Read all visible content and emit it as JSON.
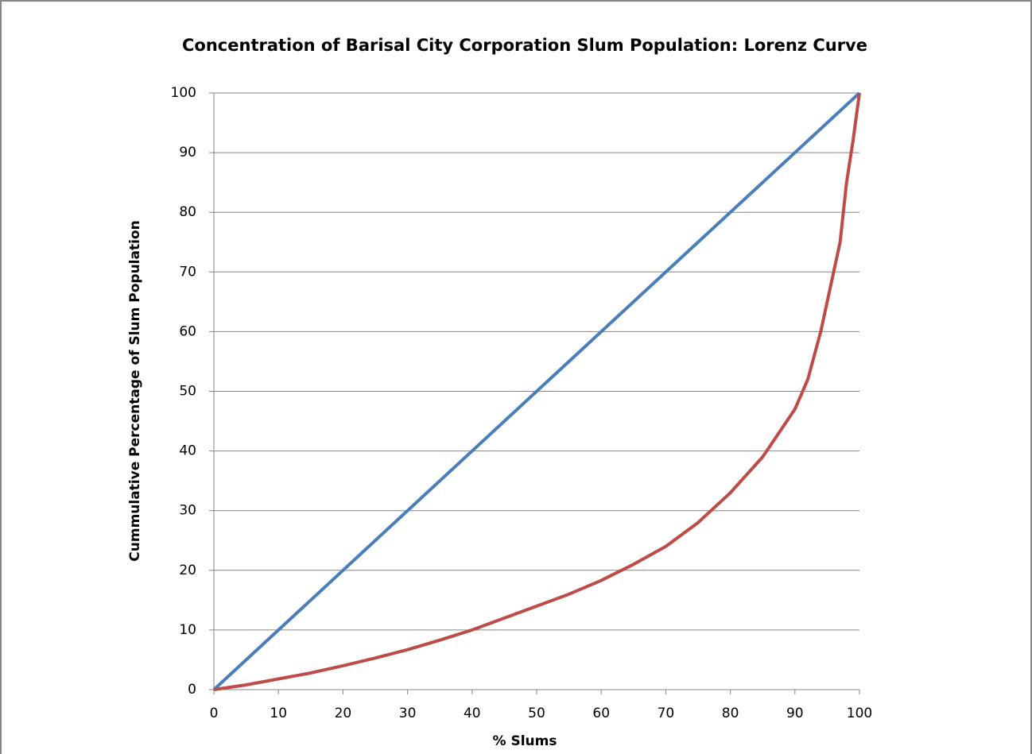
{
  "chart_data": {
    "type": "line",
    "title": "Concentration of Barisal City Corporation Slum Population: Lorenz Curve",
    "x_label": "% Slums",
    "y_label": "Cummulative Percentage of Slum Population",
    "xlim": [
      0,
      100
    ],
    "ylim": [
      0,
      100
    ],
    "xticks": [
      0,
      10,
      20,
      30,
      40,
      50,
      60,
      70,
      80,
      90,
      100
    ],
    "yticks": [
      0,
      10,
      20,
      30,
      40,
      50,
      60,
      70,
      80,
      90,
      100
    ],
    "grid": true,
    "series": [
      {
        "color": "#4a7ebb",
        "x": [
          0,
          100
        ],
        "values": [
          0,
          100
        ]
      },
      {
        "color": "#be4b48",
        "x": [
          0,
          5,
          10,
          15,
          20,
          25,
          30,
          35,
          40,
          45,
          50,
          55,
          60,
          65,
          70,
          75,
          80,
          85,
          90,
          92,
          94,
          96,
          97,
          98,
          99,
          100
        ],
        "values": [
          0,
          0.8,
          1.8,
          2.8,
          4,
          5.3,
          6.7,
          8.3,
          10,
          12,
          14,
          16,
          18.3,
          21,
          24,
          28,
          33,
          39,
          47,
          52,
          60,
          70,
          75,
          85,
          92,
          100
        ]
      }
    ]
  }
}
